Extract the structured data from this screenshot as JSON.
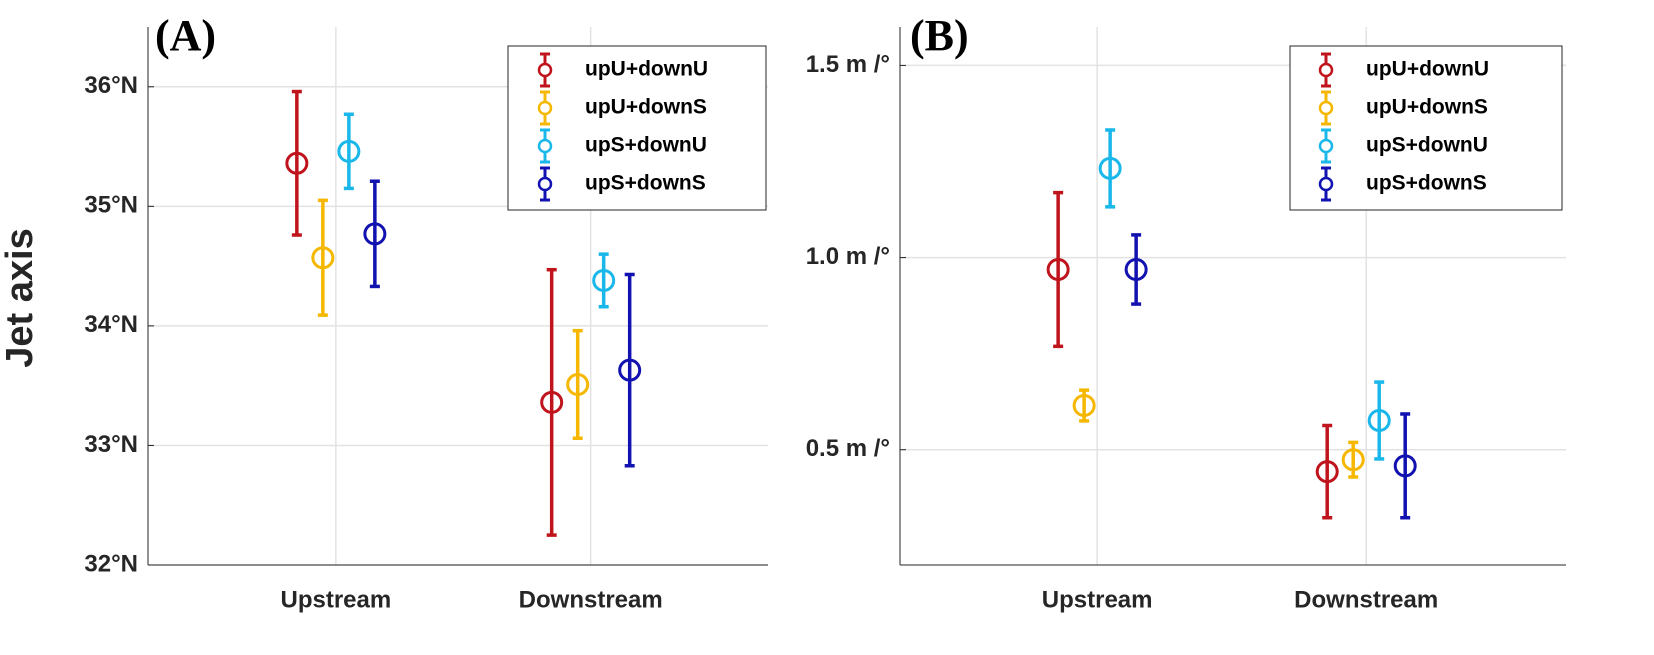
{
  "chart_data": [
    {
      "type": "errorbar",
      "title": "(A)",
      "y_label": "Jet axis",
      "categories": [
        "Upstream",
        "Downstream"
      ],
      "ylim": [
        32,
        36.5
      ],
      "yticks": [
        {
          "value": 32,
          "label": "32°N"
        },
        {
          "value": 33,
          "label": "33°N"
        },
        {
          "value": 34,
          "label": "34°N"
        },
        {
          "value": 35,
          "label": "35°N"
        },
        {
          "value": 36,
          "label": "36°N"
        }
      ],
      "grid": true,
      "legend": "northeast",
      "series": [
        {
          "name": "upU+downU",
          "color": "#c0141c",
          "values": [
            35.36,
            33.36
          ],
          "errors": [
            0.6,
            1.11
          ]
        },
        {
          "name": "upU+downS",
          "color": "#f5b700",
          "values": [
            34.57,
            33.51
          ],
          "errors": [
            0.48,
            0.45
          ]
        },
        {
          "name": "upS+downU",
          "color": "#1ab8ea",
          "values": [
            35.46,
            34.38
          ],
          "errors": [
            0.31,
            0.22
          ]
        },
        {
          "name": "upS+downS",
          "color": "#1212b0",
          "values": [
            34.77,
            33.63
          ],
          "errors": [
            0.44,
            0.8
          ]
        }
      ]
    },
    {
      "type": "errorbar",
      "title": "(B)",
      "categories": [
        "Upstream",
        "Downstream"
      ],
      "ylim": [
        0.2,
        1.6
      ],
      "yticks": [
        {
          "value": 0.5,
          "label": "0.5 m /°"
        },
        {
          "value": 1.0,
          "label": "1.0 m /°"
        },
        {
          "value": 1.5,
          "label": "1.5 m /°"
        }
      ],
      "grid": true,
      "legend": "northeast",
      "series": [
        {
          "name": "upU+downU",
          "color": "#c0141c",
          "values": [
            0.969,
            0.443
          ],
          "errors": [
            0.2,
            0.12
          ]
        },
        {
          "name": "upU+downS",
          "color": "#f5b700",
          "values": [
            0.615,
            0.474
          ],
          "errors": [
            0.04,
            0.045
          ]
        },
        {
          "name": "upS+downU",
          "color": "#1ab8ea",
          "values": [
            1.232,
            0.576
          ],
          "errors": [
            0.1,
            0.1
          ]
        },
        {
          "name": "upS+downS",
          "color": "#1212b0",
          "values": [
            0.969,
            0.458
          ],
          "errors": [
            0.09,
            0.135
          ]
        }
      ]
    }
  ]
}
